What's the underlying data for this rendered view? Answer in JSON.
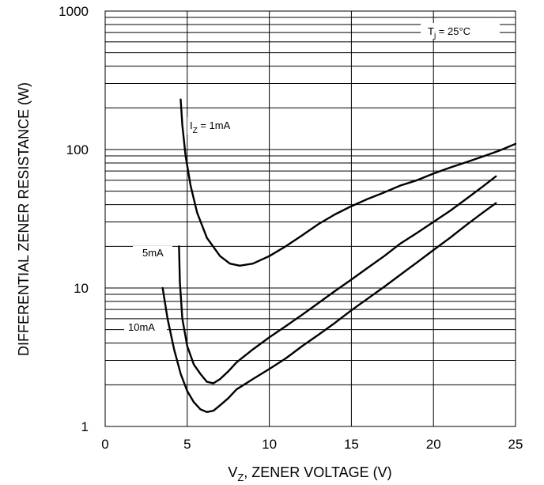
{
  "chart_data": {
    "type": "line",
    "title": "",
    "xlabel": "V",
    "xlabel_sub": "Z",
    "xlabel_rest": ", ZENER VOLTAGE (V)",
    "ylabel": "DIFFERENTIAL ZENER RESISTANCE (W)",
    "xlim": [
      0,
      25
    ],
    "ylim": [
      1,
      1000
    ],
    "yscale": "log",
    "grid": true,
    "x_ticks": [
      "0",
      "5",
      "10",
      "15",
      "20",
      "25"
    ],
    "y_ticks": [
      "1",
      "10",
      "100",
      "1000"
    ],
    "annotation": {
      "prefix": "T",
      "sub": "j",
      "rest": " = 25°C"
    },
    "series": [
      {
        "name": "1mA",
        "label_prefix": "I",
        "label_sub": "Z",
        "label_rest": " = 1mA",
        "x": [
          4.6,
          4.7,
          4.9,
          5.2,
          5.6,
          6.2,
          7.0,
          7.6,
          8.2,
          9.0,
          10.0,
          11.0,
          12.0,
          13.0,
          14.0,
          15.0,
          16.0,
          17.0,
          18.0,
          19.0,
          20.0,
          21.0,
          22.0,
          23.0,
          24.0,
          25.0
        ],
        "y": [
          230,
          150,
          90,
          55,
          35,
          23,
          17,
          15,
          14.5,
          15,
          17,
          20,
          24,
          29,
          34,
          39,
          44,
          49,
          55,
          60,
          67,
          74,
          81,
          89,
          98,
          110
        ]
      },
      {
        "name": "5mA",
        "label_prefix": "",
        "label_sub": "",
        "label_rest": "5mA",
        "x": [
          4.5,
          4.55,
          4.7,
          5.0,
          5.4,
          5.8,
          6.2,
          6.6,
          7.0,
          7.5,
          8.0,
          9.0,
          10.0,
          11.0,
          12.0,
          13.0,
          14.0,
          15.0,
          16.0,
          17.0,
          18.0,
          19.0,
          20.0,
          21.0,
          22.0,
          23.0,
          23.8
        ],
        "y": [
          20,
          11,
          6.0,
          3.8,
          2.8,
          2.4,
          2.1,
          2.05,
          2.2,
          2.5,
          2.9,
          3.6,
          4.4,
          5.3,
          6.4,
          7.8,
          9.5,
          11.5,
          14,
          17,
          21,
          25,
          30,
          36,
          44,
          54,
          64
        ]
      },
      {
        "name": "10mA",
        "label_prefix": "",
        "label_sub": "",
        "label_rest": "10mA",
        "x": [
          3.5,
          3.8,
          4.2,
          4.6,
          5.0,
          5.4,
          5.8,
          6.2,
          6.6,
          7.0,
          7.5,
          8.0,
          9.0,
          10.0,
          11.0,
          12.0,
          13.0,
          14.0,
          15.0,
          16.0,
          17.0,
          18.0,
          19.0,
          20.0,
          21.0,
          22.0,
          23.0,
          23.8
        ],
        "y": [
          10,
          6.0,
          3.6,
          2.4,
          1.8,
          1.5,
          1.33,
          1.27,
          1.3,
          1.42,
          1.6,
          1.85,
          2.2,
          2.6,
          3.1,
          3.8,
          4.6,
          5.6,
          6.9,
          8.4,
          10.2,
          12.5,
          15.3,
          18.8,
          23,
          28.5,
          35,
          41
        ]
      }
    ]
  }
}
